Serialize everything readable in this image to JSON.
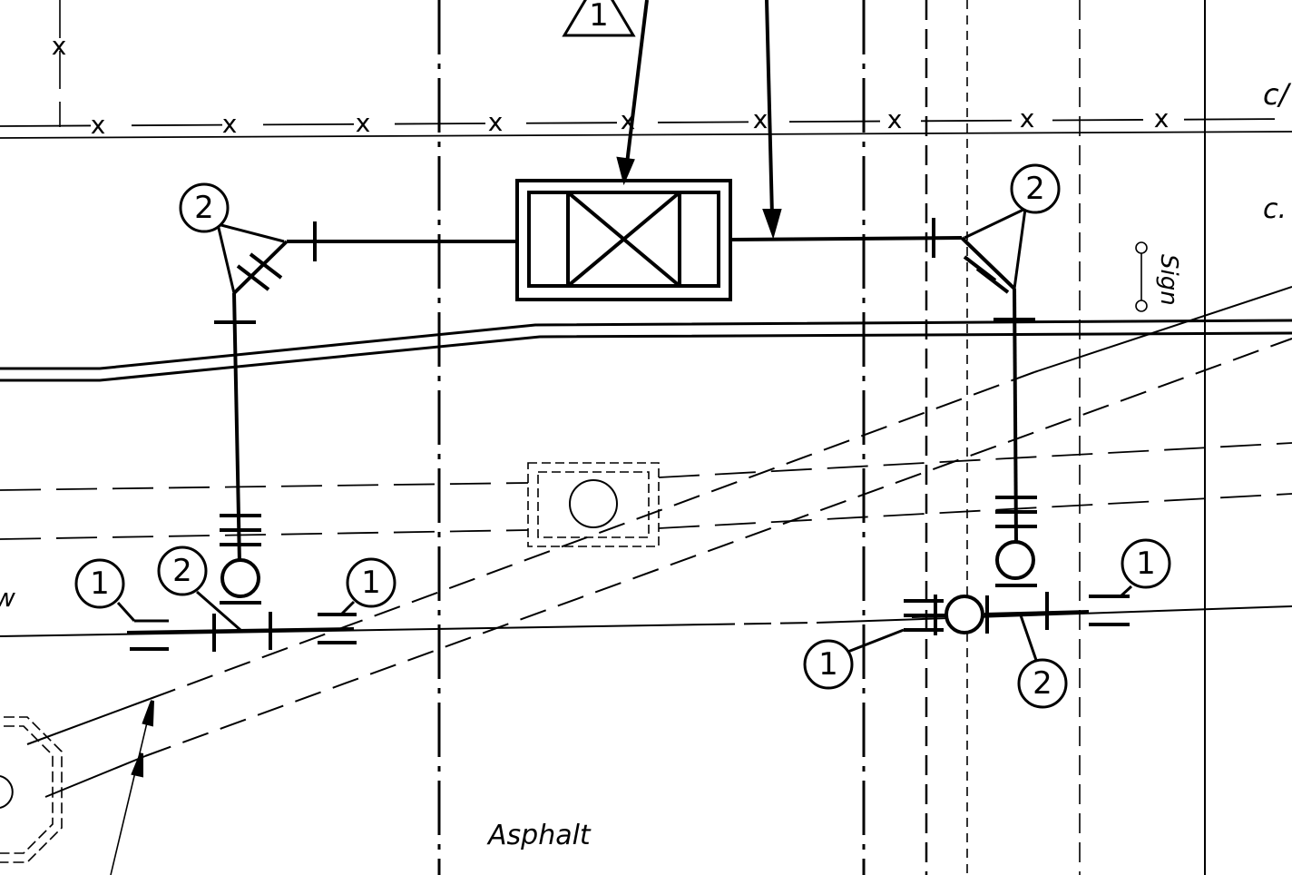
{
  "drawing": {
    "fence_marker": "x",
    "revision_triangle": "1",
    "labels": {
      "asphalt": "Asphalt",
      "sign": "Sign",
      "edge_top_right": "c/",
      "edge_right": "c.",
      "edge_left": "w"
    },
    "callouts": {
      "top_left": "2",
      "top_right": "2",
      "mid_left": "2",
      "left_one_a": "1",
      "left_one_b": "1",
      "right_one_top": "1",
      "right_one_bottom": "1",
      "right_two_bottom": "2"
    },
    "colors": {
      "ink": "#000000",
      "paper": "#ffffff"
    }
  }
}
